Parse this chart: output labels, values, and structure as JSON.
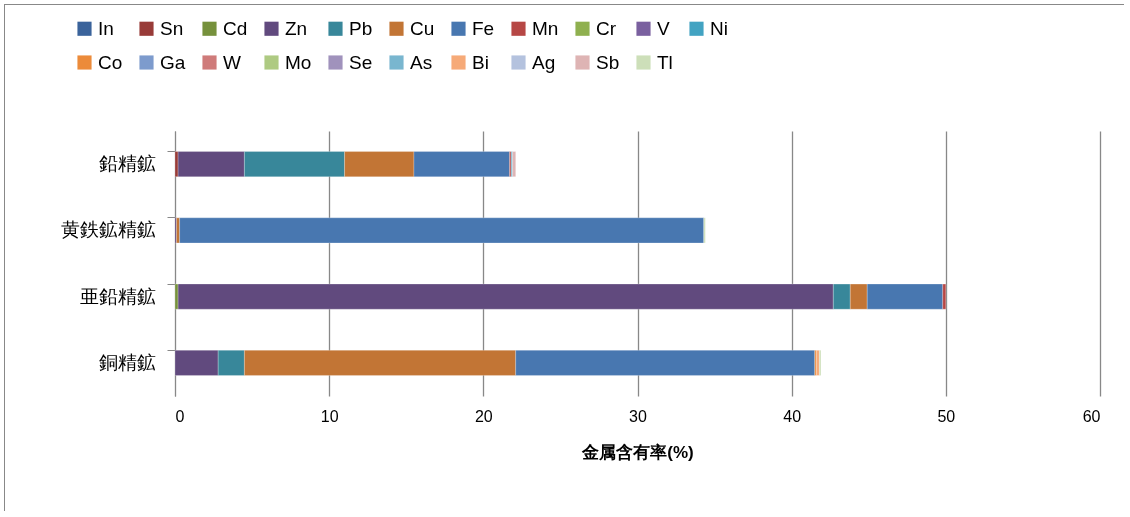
{
  "chart_data": {
    "type": "bar",
    "orientation": "horizontal",
    "stacked": true,
    "xlabel": "金属含有率(%)",
    "categories": [
      "鉛精鉱",
      "黄鉄鉱精鉱",
      "亜鉛精鉱",
      "銅精鉱"
    ],
    "xlim": [
      0,
      60
    ],
    "xticks": [
      0,
      10,
      20,
      30,
      40,
      50,
      60
    ],
    "grid": "x",
    "legend": "top",
    "series": [
      {
        "name": "In",
        "color": "#3a639b",
        "values": [
          null,
          null,
          null,
          null
        ]
      },
      {
        "name": "Sn",
        "color": "#983b38",
        "values": [
          0.2,
          null,
          null,
          null
        ]
      },
      {
        "name": "Cd",
        "color": "#76913c",
        "values": [
          null,
          null,
          0.2,
          null
        ]
      },
      {
        "name": "Zn",
        "color": "#614a7e",
        "values": [
          4.3,
          0.1,
          42.5,
          2.8
        ]
      },
      {
        "name": "Pb",
        "color": "#38879a",
        "values": [
          6.5,
          null,
          1.1,
          1.7
        ]
      },
      {
        "name": "Cu",
        "color": "#c27535",
        "values": [
          4.5,
          0.2,
          1.1,
          17.6
        ]
      },
      {
        "name": "Fe",
        "color": "#4877b0",
        "values": [
          6.2,
          34.0,
          4.9,
          19.4
        ]
      },
      {
        "name": "Mn",
        "color": "#b64745",
        "values": [
          0.1,
          null,
          0.2,
          null
        ]
      },
      {
        "name": "Cr",
        "color": "#8fb04f",
        "values": [
          null,
          null,
          null,
          null
        ]
      },
      {
        "name": "V",
        "color": "#7a609f",
        "values": [
          null,
          null,
          null,
          null
        ]
      },
      {
        "name": "Ni",
        "color": "#42a3c2",
        "values": [
          null,
          null,
          null,
          null
        ]
      },
      {
        "name": "Co",
        "color": "#ec8b3a",
        "values": [
          null,
          null,
          null,
          0.1
        ]
      },
      {
        "name": "Ga",
        "color": "#7d9bcd",
        "values": [
          null,
          null,
          null,
          null
        ]
      },
      {
        "name": "W",
        "color": "#cf7b7a",
        "values": [
          null,
          null,
          null,
          null
        ]
      },
      {
        "name": "Mo",
        "color": "#aeca82",
        "values": [
          null,
          null,
          null,
          null
        ]
      },
      {
        "name": "Se",
        "color": "#a092bc",
        "values": [
          null,
          null,
          null,
          null
        ]
      },
      {
        "name": "As",
        "color": "#79b6cf",
        "values": [
          0.1,
          null,
          null,
          null
        ]
      },
      {
        "name": "Bi",
        "color": "#f6aa78",
        "values": [
          null,
          null,
          null,
          0.2
        ]
      },
      {
        "name": "Ag",
        "color": "#b4c2de",
        "values": [
          null,
          null,
          null,
          null
        ]
      },
      {
        "name": "Sb",
        "color": "#deb4b4",
        "values": [
          0.2,
          null,
          null,
          null
        ]
      },
      {
        "name": "Tl",
        "color": "#cddfb9",
        "values": [
          null,
          0.1,
          null,
          0.1
        ]
      }
    ]
  }
}
